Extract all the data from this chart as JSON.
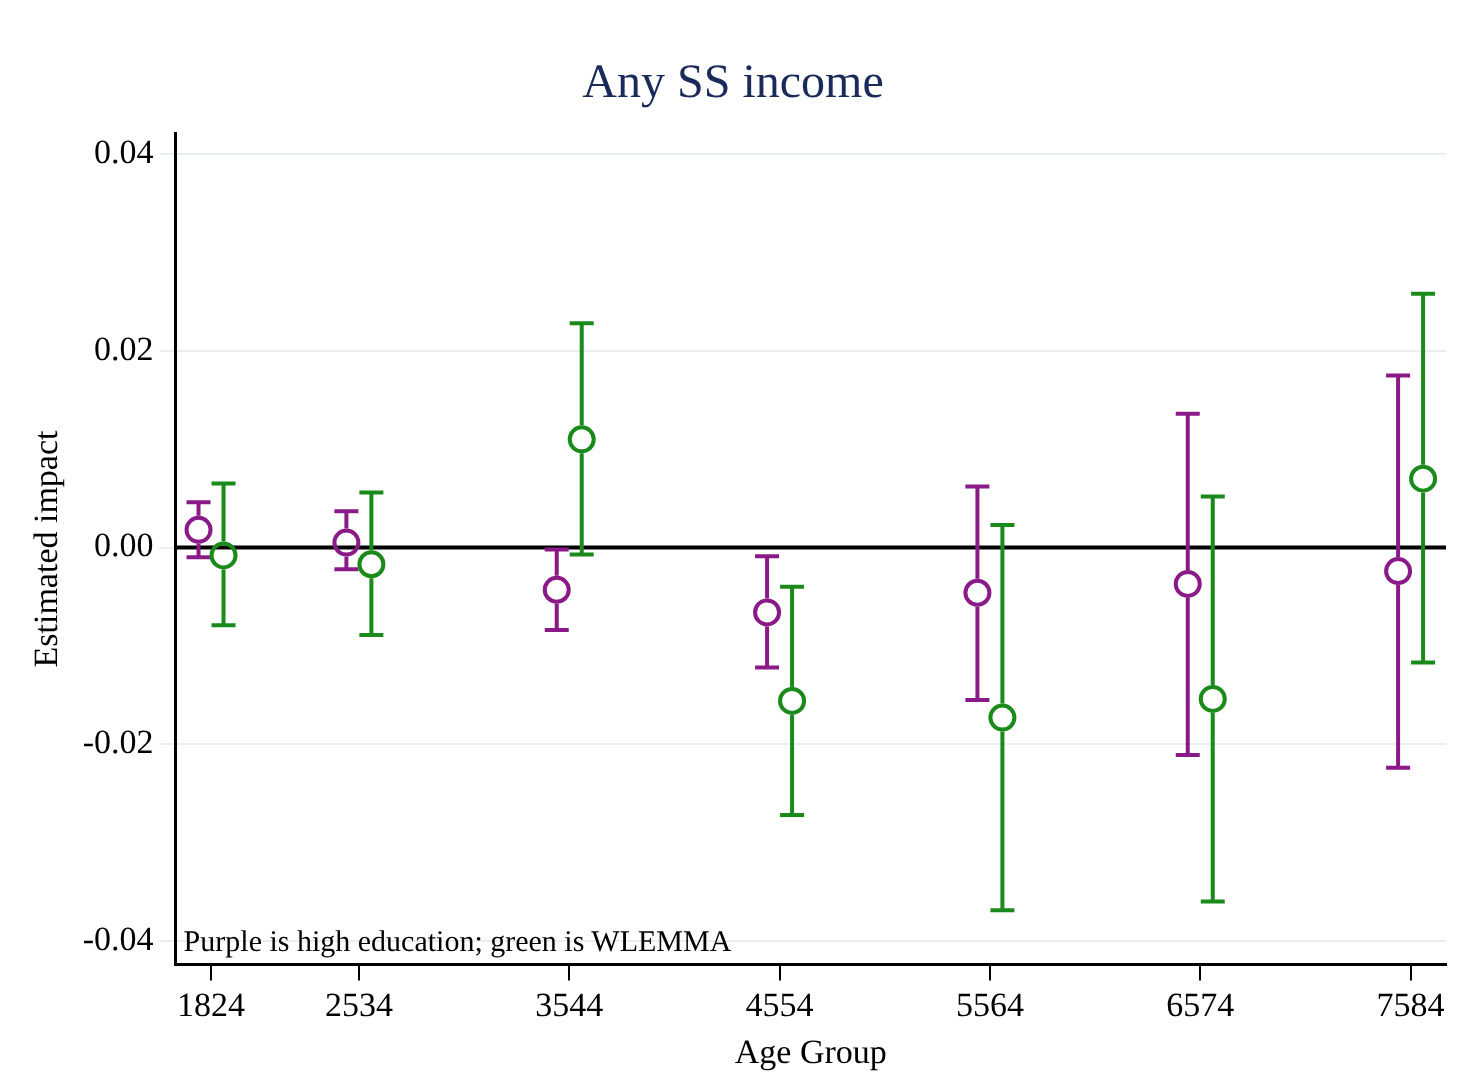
{
  "chart_data": {
    "type": "scatter",
    "title": "Any SS income",
    "xlabel": "Age Group",
    "ylabel": "Estimated impact",
    "xlim": [
      1654,
      7754
    ],
    "xticks": [
      1824,
      2534,
      3544,
      4554,
      5564,
      6574,
      7584
    ],
    "ylim": [
      -0.0424,
      0.0421
    ],
    "yticks": [
      {
        "value": -0.04,
        "label": "-0.04"
      },
      {
        "value": -0.02,
        "label": "-0.02"
      },
      {
        "value": 0,
        "label": "0.00"
      },
      {
        "value": 0.02,
        "label": "0.02"
      },
      {
        "value": 0.04,
        "label": "0.04"
      }
    ],
    "grid": "y",
    "legend": false,
    "marker": "circle",
    "ref_lines": [
      {
        "axis": "y",
        "value": 0,
        "color": "#000000"
      }
    ],
    "annotations": [
      "Purple is high education; green is WLEMMA"
    ],
    "series": [
      {
        "color": "#8b1a89",
        "x": [
          1764,
          2474,
          3484,
          4494,
          5504,
          6514,
          7524
        ],
        "values": [
          0.0018,
          0.0005,
          -0.0043,
          -0.0066,
          -0.0046,
          -0.0037,
          -0.0024
        ],
        "errors": [
          [
            -0.001,
            0.0046
          ],
          [
            -0.0022,
            0.0037
          ],
          [
            -0.0084,
            -0.0002
          ],
          [
            -0.0122,
            -0.0009
          ],
          [
            -0.0155,
            0.0062
          ],
          [
            -0.0211,
            0.0136
          ],
          [
            -0.0224,
            0.0175
          ]
        ]
      },
      {
        "color": "#1a8a1a",
        "x": [
          1884,
          2594,
          3604,
          4614,
          5624,
          6634,
          7644
        ],
        "values": [
          -0.0008,
          -0.0017,
          0.011,
          -0.0156,
          -0.0173,
          -0.0154,
          0.007
        ],
        "errors": [
          [
            -0.0079,
            0.0065
          ],
          [
            -0.0089,
            0.0056
          ],
          [
            -0.0007,
            0.0228
          ],
          [
            -0.0272,
            -0.004
          ],
          [
            -0.0369,
            0.0023
          ],
          [
            -0.036,
            0.0052
          ],
          [
            -0.0117,
            0.0258
          ]
        ]
      }
    ]
  }
}
